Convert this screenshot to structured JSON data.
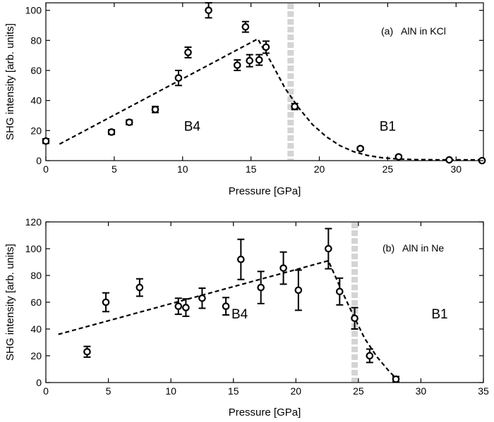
{
  "chart_data": [
    {
      "type": "scatter",
      "annotation": "(a)   AlN in KCl",
      "xlabel": "Pressure [GPa]",
      "ylabel": "SHG intensity [arb. units]",
      "xlim": [
        0,
        32
      ],
      "ylim": [
        0,
        105
      ],
      "xticks": [
        0,
        5,
        10,
        15,
        20,
        25,
        30
      ],
      "yticks": [
        0,
        20,
        40,
        60,
        80,
        100
      ],
      "grid": false,
      "phase_labels": [
        {
          "text": "B4",
          "x": 10.7,
          "y": 20
        },
        {
          "text": "B1",
          "x": 25,
          "y": 20
        }
      ],
      "transition_pressure": 17.9,
      "series": [
        {
          "x": [
            0,
            4.8,
            6.1,
            8,
            9.7,
            10.4,
            11.9,
            14,
            14.6,
            14.9,
            15.6,
            16.1,
            18.2,
            23,
            25.8,
            29.5,
            31.9
          ],
          "y": [
            13,
            19,
            25.5,
            34,
            55,
            72,
            100,
            63.5,
            89,
            66.5,
            67,
            75.5,
            36,
            8,
            2.5,
            0.5,
            0
          ],
          "err": [
            1.5,
            1.5,
            1.5,
            2,
            5,
            3.5,
            5,
            3.5,
            3.5,
            4,
            3.5,
            4,
            2,
            1,
            1,
            0.5,
            0.5
          ]
        }
      ],
      "fit": {
        "x": [
          1,
          15.5,
          16.5,
          17.5,
          18.5,
          19.5,
          20.5,
          21.5,
          22.5,
          23.5,
          24.5,
          25.5,
          27,
          29,
          32
        ],
        "y": [
          11,
          81,
          65,
          48,
          35,
          24,
          16,
          10,
          6,
          3.5,
          2,
          1.2,
          0.7,
          0.5,
          0.5
        ]
      }
    },
    {
      "type": "scatter",
      "annotation": "(b)   AlN in Ne",
      "xlabel": "Pressure [GPa]",
      "ylabel": "SHG intensity [arb. units]",
      "xlim": [
        0,
        35
      ],
      "ylim": [
        0,
        120
      ],
      "xticks": [
        0,
        5,
        10,
        15,
        20,
        25,
        30,
        35
      ],
      "yticks": [
        0,
        20,
        40,
        60,
        80,
        100,
        120
      ],
      "grid": false,
      "phase_labels": [
        {
          "text": "B4",
          "x": 15.5,
          "y": 48
        },
        {
          "text": "B1",
          "x": 31.5,
          "y": 48
        }
      ],
      "transition_pressure": 24.7,
      "series": [
        {
          "x": [
            3.3,
            4.8,
            7.5,
            10.6,
            11.2,
            12.5,
            14.4,
            15.6,
            17.2,
            19,
            20.2,
            22.6,
            23.5,
            24.7,
            25.9,
            28
          ],
          "y": [
            23,
            60,
            71,
            57,
            56,
            63,
            57,
            92,
            71,
            85.5,
            69,
            100,
            68,
            48,
            20,
            2.5
          ],
          "err": [
            4,
            7,
            6.5,
            6,
            6.5,
            7.5,
            6.5,
            15,
            12,
            12,
            15,
            15,
            10,
            8,
            5,
            2
          ]
        }
      ],
      "fit": {
        "x": [
          1,
          22.6,
          23.5,
          24.5,
          25.5,
          26.5,
          27.5,
          28.3
        ],
        "y": [
          36,
          91,
          72,
          52,
          33,
          19,
          8,
          0.5
        ]
      }
    }
  ]
}
